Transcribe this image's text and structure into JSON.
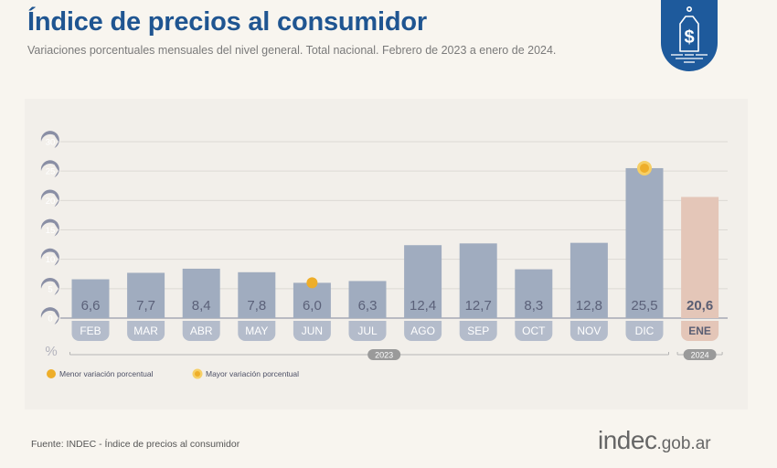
{
  "header": {
    "title": "Índice de precios al consumidor",
    "subtitle": "Variaciones porcentuales mensuales del nivel general. Total nacional. Febrero de 2023 a enero de 2024.",
    "badge_icon": "price-tag-dollar-icon"
  },
  "colors": {
    "title": "#1f5591",
    "bar": "#a0acbf",
    "bar_highlight": "#e4c6b8",
    "label_pill": "#b4bccb",
    "axis_pill": "#8a8fa5",
    "marker": "#eeae2a",
    "year_pill": "#9a9a9a",
    "badge": "#1e5a9c"
  },
  "chart_data": {
    "type": "bar",
    "title": "Índice de precios al consumidor",
    "subtitle": "Variaciones porcentuales mensuales del nivel general. Total nacional. Febrero de 2023 a enero de 2024.",
    "xlabel": "",
    "ylabel": "%",
    "ylim": [
      0,
      30
    ],
    "yticks": [
      0,
      5,
      10,
      15,
      20,
      25,
      30
    ],
    "grid": true,
    "categories": [
      "FEB",
      "MAR",
      "ABR",
      "MAY",
      "JUN",
      "JUL",
      "AGO",
      "SEP",
      "OCT",
      "NOV",
      "DIC",
      "ENE"
    ],
    "values": [
      6.6,
      7.7,
      8.4,
      7.8,
      6.0,
      6.3,
      12.4,
      12.7,
      8.3,
      12.8,
      25.5,
      20.6
    ],
    "value_labels": [
      "6,6",
      "7,7",
      "8,4",
      "7,8",
      "6,0",
      "6,3",
      "12,4",
      "12,7",
      "8,3",
      "12,8",
      "25,5",
      "20,6"
    ],
    "highlight_index": 11,
    "years": [
      {
        "label": "2023",
        "from": 0,
        "to": 10
      },
      {
        "label": "2024",
        "from": 11,
        "to": 11
      }
    ],
    "markers": [
      {
        "index": 4,
        "type": "min",
        "label": "Menor variación porcentual"
      },
      {
        "index": 10,
        "type": "max",
        "label": "Mayor variación porcentual"
      }
    ],
    "legend": [
      {
        "type": "min",
        "label": "Menor variación porcentual"
      },
      {
        "type": "max",
        "label": "Mayor variación porcentual"
      }
    ],
    "legend_position": "bottom-left"
  },
  "footer": {
    "source": "Fuente: INDEC - Índice de precios al consumidor",
    "logo_main": "indec",
    "logo_domain": ".gob.ar"
  }
}
